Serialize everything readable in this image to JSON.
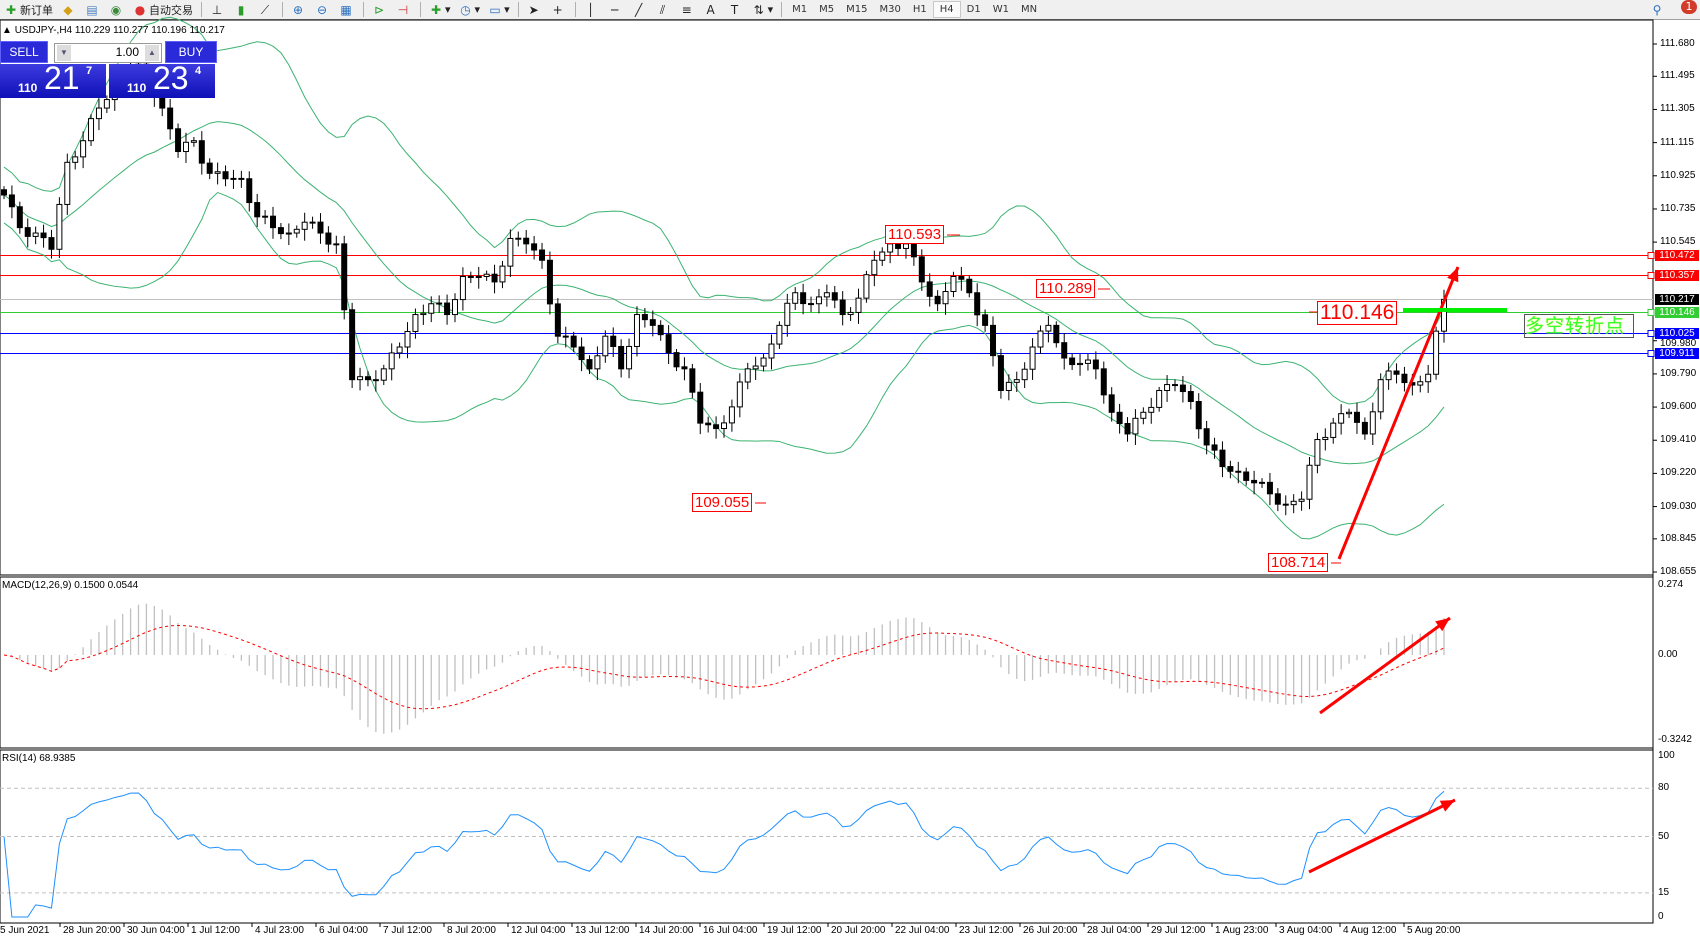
{
  "toolbar": {
    "new_order_label": "新订单",
    "auto_trade_label": "自动交易",
    "timeframes": [
      "M1",
      "M5",
      "M15",
      "M30",
      "H1",
      "H4",
      "D1",
      "W1",
      "MN"
    ],
    "active_timeframe": "H4",
    "notification_count": "1"
  },
  "chart_header": {
    "text": "USDJPY-,H4  110.229 110.277 110.196 110.217"
  },
  "trade_panel": {
    "sell_label": "SELL",
    "buy_label": "BUY",
    "lot_size": "1.00",
    "sell_price_prefix": "110",
    "sell_price_big": "21",
    "sell_price_sup": "7",
    "buy_price_prefix": "110",
    "buy_price_big": "23",
    "buy_price_sup": "4"
  },
  "colors": {
    "bull_body": "#ffffff",
    "bear_body": "#000000",
    "bollinger": "#3cb371",
    "resistance": "#ff0000",
    "pivot": "#32cd32",
    "support": "#0000ff",
    "current_price": "#c0c0c0",
    "rsi_line": "#1e90ff",
    "macd_hist": "#c0c0c0",
    "macd_signal": "#ff0000",
    "arrow": "#ff0000"
  },
  "price_axis": {
    "ticks": [
      "111.680",
      "111.495",
      "111.305",
      "111.115",
      "110.925",
      "110.735",
      "110.545",
      "109.980",
      "109.790",
      "109.600",
      "109.410",
      "109.220",
      "109.030",
      "108.845",
      "108.655"
    ]
  },
  "levels": [
    {
      "price": 110.472,
      "label": "110.472",
      "type": "resistance"
    },
    {
      "price": 110.357,
      "label": "110.357",
      "type": "resistance"
    },
    {
      "price": 110.217,
      "label": "110.217",
      "type": "current_price"
    },
    {
      "price": 110.146,
      "label": "110.146",
      "type": "pivot"
    },
    {
      "price": 110.025,
      "label": "110.025",
      "type": "support"
    },
    {
      "price": 109.911,
      "label": "109.911",
      "type": "support"
    }
  ],
  "annotations": {
    "high_1": "110.593",
    "high_2": "110.289",
    "low_1": "109.055",
    "low_2": "108.714",
    "pivot_value": "110.146",
    "pivot_text": "多空转折点"
  },
  "macd": {
    "title": "MACD(12,26,9) 0.1500 0.0544",
    "axis": [
      "0.274",
      "0.00",
      "-0.3242"
    ]
  },
  "rsi": {
    "title": "RSI(14) 68.9385",
    "axis": [
      "100",
      "80",
      "50",
      "15",
      "0"
    ],
    "levels": [
      80,
      50,
      15
    ]
  },
  "time_axis": [
    "5 Jun 2021",
    "28 Jun 20:00",
    "30 Jun 04:00",
    "1 Jul 12:00",
    "4 Jul 23:00",
    "6 Jul 04:00",
    "7 Jul 12:00",
    "8 Jul 20:00",
    "12 Jul 04:00",
    "13 Jul 12:00",
    "14 Jul 20:00",
    "16 Jul 04:00",
    "19 Jul 12:00",
    "20 Jul 20:00",
    "22 Jul 04:00",
    "23 Jul 12:00",
    "26 Jul 20:00",
    "28 Jul 04:00",
    "29 Jul 12:00",
    "1 Aug 23:00",
    "3 Aug 04:00",
    "4 Aug 12:00",
    "5 Aug 20:00"
  ],
  "chart_data": {
    "type": "candlestick",
    "symbol": "USDJPY-",
    "timeframe": "H4",
    "ylim": [
      108.655,
      111.68
    ],
    "closes": [
      110.815,
      110.628,
      110.597,
      110.504,
      111.002,
      111.126,
      111.313,
      111.437,
      111.562,
      111.499,
      111.313,
      111.064,
      111.126,
      110.939,
      110.908,
      110.908,
      110.69,
      110.628,
      110.597,
      110.659,
      110.597,
      110.535,
      109.757,
      109.757,
      109.819,
      109.944,
      110.13,
      110.192,
      110.13,
      110.348,
      110.348,
      110.317,
      110.566,
      110.535,
      110.441,
      110.006,
      109.944,
      109.819,
      110.006,
      109.819,
      110.13,
      110.068,
      109.912,
      109.819,
      109.508,
      109.477,
      109.601,
      109.819,
      109.881,
      110.068,
      110.255,
      110.192,
      110.255,
      110.13,
      110.224,
      110.441,
      110.535,
      110.535,
      110.317,
      110.192,
      110.348,
      110.255,
      110.068,
      109.695,
      109.757,
      109.944,
      110.068,
      109.881,
      109.85,
      109.819,
      109.57,
      109.446,
      109.57,
      109.695,
      109.726,
      109.632,
      109.383,
      109.259,
      109.228,
      109.166,
      109.103,
      109.041,
      109.072,
      109.414,
      109.508,
      109.57,
      109.446,
      109.757,
      109.788,
      109.726,
      109.788,
      110.217
    ]
  }
}
